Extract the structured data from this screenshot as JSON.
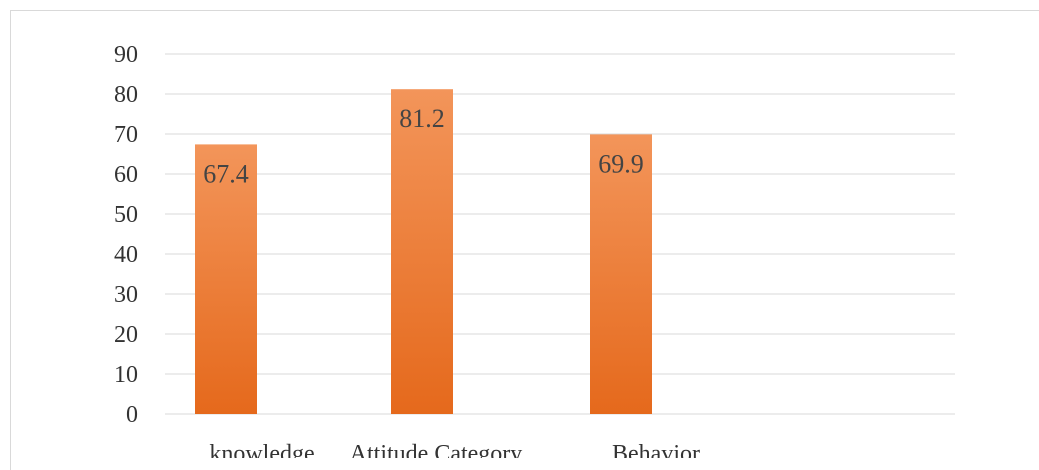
{
  "chart_data": {
    "type": "bar",
    "categories": [
      "knowledge",
      "Attitude Category",
      "Behavior"
    ],
    "values": [
      67.4,
      81.2,
      69.9
    ],
    "data_labels": [
      "67.4",
      "81.2",
      "69.9"
    ],
    "title": "",
    "xlabel": "",
    "ylabel": "",
    "ylim": [
      0,
      90
    ],
    "yticks": [
      0,
      10,
      20,
      30,
      40,
      50,
      60,
      70,
      80,
      90
    ],
    "grid": true,
    "legend": "none",
    "colors": {
      "bar_top": "#f3955a",
      "bar_bottom": "#e5691c",
      "grid": "#d9d9d9",
      "text": "#333333"
    }
  }
}
